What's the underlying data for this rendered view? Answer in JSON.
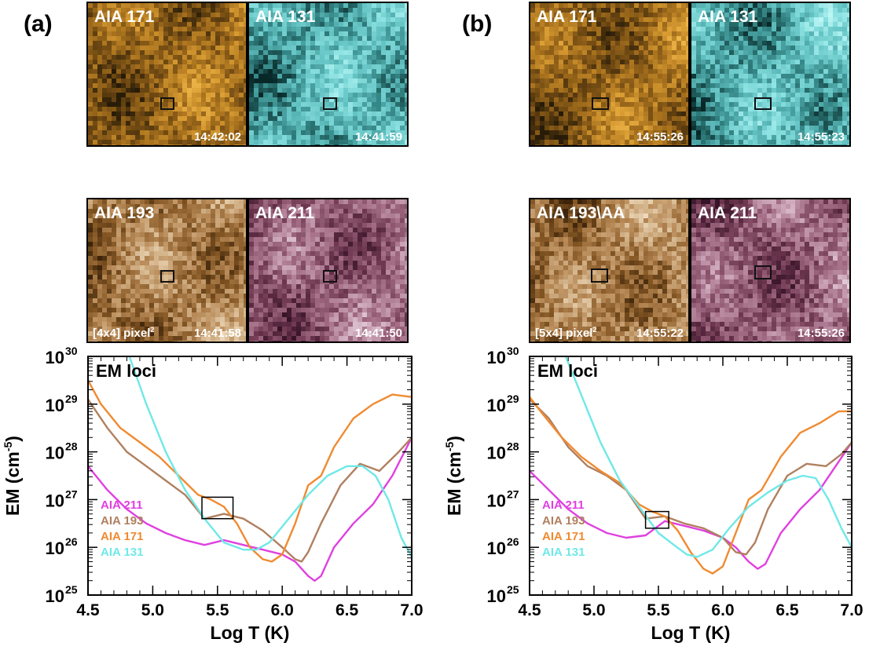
{
  "panels": [
    {
      "letter": "(a)",
      "images": [
        {
          "label": "AIA 171",
          "time": "14:42:02",
          "pixels": "",
          "colormap": "aia171"
        },
        {
          "label": "AIA 131",
          "time": "14:41:59",
          "pixels": "",
          "colormap": "aia131"
        },
        {
          "label": "AIA 193",
          "time": "14:41:58",
          "pixels": "[4x4] pixel",
          "pixels_sup": "2",
          "colormap": "aia193"
        },
        {
          "label": "AIA 211",
          "time": "14:41:50",
          "pixels": "",
          "colormap": "aia211"
        }
      ]
    },
    {
      "letter": "(b)",
      "images": [
        {
          "label": "AIA 171",
          "time": "14:55:26",
          "pixels": "",
          "colormap": "aia171"
        },
        {
          "label": "AIA 131",
          "time": "14:55:23",
          "pixels": "",
          "colormap": "aia131"
        },
        {
          "label": "AIA 193\\AA",
          "time": "14:55:22",
          "pixels": "[5x4] pixel",
          "pixels_sup": "2",
          "colormap": "aia193"
        },
        {
          "label": "AIA 211",
          "time": "14:55:26",
          "pixels": "",
          "colormap": "aia211"
        }
      ]
    }
  ],
  "colors": {
    "aia211": "#e040e0",
    "aia193": "#b08060",
    "aia171": "#f08a30",
    "aia131": "#70e8e8"
  },
  "chart_data": [
    {
      "type": "line",
      "title": "EM loci",
      "xlabel": "Log T (K)",
      "ylabel": "EM (cm",
      "ylabel_sup": "-5",
      "ylabel_close": ")",
      "xlim": [
        4.5,
        7.0
      ],
      "ylim_log10": [
        25,
        30
      ],
      "yscale": "log",
      "xticks": [
        "4.5",
        "5.0",
        "5.5",
        "6.0",
        "6.5",
        "7.0"
      ],
      "yticks": [
        {
          "base": "10",
          "exp": "25"
        },
        {
          "base": "10",
          "exp": "26"
        },
        {
          "base": "10",
          "exp": "27"
        },
        {
          "base": "10",
          "exp": "28"
        },
        {
          "base": "10",
          "exp": "29"
        },
        {
          "base": "10",
          "exp": "30"
        }
      ],
      "box": {
        "logT": [
          5.38,
          5.62
        ],
        "log_em": [
          26.6,
          27.05
        ]
      },
      "series": [
        {
          "name": "AIA 211",
          "color": "#e040e0",
          "x": [
            4.5,
            4.65,
            4.8,
            4.95,
            5.1,
            5.25,
            5.4,
            5.55,
            5.7,
            5.85,
            6.0,
            6.1,
            6.2,
            6.25,
            6.3,
            6.4,
            6.55,
            6.7,
            6.85,
            7.0
          ],
          "log_em": [
            27.7,
            27.2,
            26.8,
            26.5,
            26.3,
            26.15,
            26.05,
            26.15,
            26.05,
            25.95,
            25.85,
            25.7,
            25.4,
            25.3,
            25.4,
            26.0,
            26.5,
            26.9,
            27.5,
            28.3
          ]
        },
        {
          "name": "AIA 193",
          "color": "#b08060",
          "x": [
            4.5,
            4.65,
            4.8,
            4.95,
            5.1,
            5.25,
            5.4,
            5.55,
            5.7,
            5.85,
            6.0,
            6.1,
            6.15,
            6.2,
            6.3,
            6.45,
            6.6,
            6.75,
            6.9,
            7.0
          ],
          "log_em": [
            29.1,
            28.5,
            28.0,
            27.7,
            27.4,
            27.1,
            26.6,
            26.7,
            26.6,
            26.35,
            26.0,
            25.75,
            25.7,
            25.9,
            26.5,
            27.3,
            27.75,
            27.6,
            28.0,
            28.3
          ]
        },
        {
          "name": "AIA 171",
          "color": "#f08a30",
          "x": [
            4.5,
            4.6,
            4.75,
            4.9,
            5.05,
            5.2,
            5.35,
            5.45,
            5.55,
            5.65,
            5.75,
            5.85,
            5.92,
            6.0,
            6.1,
            6.2,
            6.3,
            6.4,
            6.55,
            6.7,
            6.85,
            7.0
          ],
          "log_em": [
            29.5,
            29.0,
            28.5,
            28.2,
            27.9,
            27.5,
            27.1,
            27.0,
            26.85,
            26.5,
            26.0,
            25.75,
            25.7,
            25.85,
            26.5,
            27.3,
            27.5,
            28.1,
            28.7,
            29.0,
            29.2,
            29.15
          ]
        },
        {
          "name": "AIA 131",
          "color": "#70e8e8",
          "x": [
            4.82,
            4.95,
            5.1,
            5.25,
            5.4,
            5.55,
            5.7,
            5.8,
            5.9,
            6.05,
            6.2,
            6.35,
            6.5,
            6.62,
            6.72,
            6.82,
            6.92,
            7.0
          ],
          "log_em": [
            30.0,
            29.0,
            28.0,
            27.2,
            26.6,
            26.1,
            25.95,
            25.95,
            26.1,
            26.6,
            27.1,
            27.5,
            27.7,
            27.7,
            27.5,
            27.0,
            26.2,
            25.8
          ]
        }
      ]
    },
    {
      "type": "line",
      "title": "EM loci",
      "xlabel": "Log T (K)",
      "ylabel": "EM (cm",
      "ylabel_sup": "-5",
      "ylabel_close": ")",
      "xlim": [
        4.5,
        7.0
      ],
      "ylim_log10": [
        25,
        30
      ],
      "yscale": "log",
      "xticks": [
        "4.5",
        "5.0",
        "5.5",
        "6.0",
        "6.5",
        "7.0"
      ],
      "yticks": [
        {
          "base": "10",
          "exp": "25"
        },
        {
          "base": "10",
          "exp": "26"
        },
        {
          "base": "10",
          "exp": "27"
        },
        {
          "base": "10",
          "exp": "28"
        },
        {
          "base": "10",
          "exp": "29"
        },
        {
          "base": "10",
          "exp": "30"
        }
      ],
      "box": {
        "logT": [
          5.4,
          5.58
        ],
        "log_em": [
          26.4,
          26.75
        ]
      },
      "series": [
        {
          "name": "AIA 211",
          "color": "#e040e0",
          "x": [
            4.5,
            4.65,
            4.8,
            4.95,
            5.1,
            5.25,
            5.4,
            5.55,
            5.7,
            5.85,
            6.0,
            6.1,
            6.2,
            6.27,
            6.33,
            6.45,
            6.6,
            6.75,
            6.9,
            7.0
          ],
          "log_em": [
            27.6,
            27.2,
            26.8,
            26.5,
            26.3,
            26.2,
            26.25,
            26.55,
            26.45,
            26.35,
            26.2,
            26.0,
            25.7,
            25.55,
            25.65,
            26.3,
            26.8,
            27.2,
            27.8,
            28.2
          ]
        },
        {
          "name": "AIA 193",
          "color": "#b08060",
          "x": [
            4.5,
            4.65,
            4.8,
            4.95,
            5.1,
            5.25,
            5.4,
            5.55,
            5.7,
            5.85,
            6.0,
            6.1,
            6.18,
            6.25,
            6.35,
            6.5,
            6.65,
            6.8,
            6.92,
            7.0
          ],
          "log_em": [
            29.1,
            28.7,
            28.1,
            27.7,
            27.5,
            27.2,
            26.6,
            26.65,
            26.5,
            26.4,
            26.2,
            25.9,
            25.85,
            26.1,
            26.8,
            27.5,
            27.75,
            27.7,
            27.95,
            28.2
          ]
        },
        {
          "name": "AIA 171",
          "color": "#f08a30",
          "x": [
            4.5,
            4.6,
            4.75,
            4.9,
            5.05,
            5.2,
            5.35,
            5.45,
            5.55,
            5.65,
            5.75,
            5.85,
            5.92,
            6.0,
            6.1,
            6.2,
            6.3,
            6.45,
            6.6,
            6.75,
            6.9,
            7.0
          ],
          "log_em": [
            29.15,
            28.8,
            28.3,
            27.9,
            27.6,
            27.35,
            26.9,
            26.75,
            26.65,
            26.35,
            25.9,
            25.55,
            25.45,
            25.6,
            26.3,
            27.0,
            27.2,
            27.9,
            28.4,
            28.6,
            28.85,
            28.85
          ]
        },
        {
          "name": "AIA 131",
          "color": "#70e8e8",
          "x": [
            4.78,
            4.9,
            5.05,
            5.2,
            5.35,
            5.5,
            5.62,
            5.72,
            5.8,
            5.92,
            6.05,
            6.2,
            6.35,
            6.5,
            6.62,
            6.72,
            6.82,
            6.92,
            7.0
          ],
          "log_em": [
            30.0,
            29.2,
            28.2,
            27.4,
            26.85,
            26.3,
            26.05,
            25.85,
            25.8,
            25.95,
            26.4,
            26.85,
            27.15,
            27.4,
            27.5,
            27.45,
            27.0,
            26.4,
            26.0
          ]
        }
      ]
    }
  ]
}
